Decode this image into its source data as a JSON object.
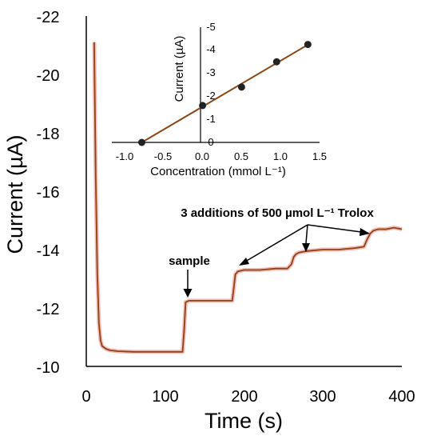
{
  "chart_data": [
    {
      "type": "line",
      "title": "",
      "xlabel": "Time (s)",
      "ylabel": "Current (µA)",
      "xlim": [
        0,
        400
      ],
      "ylim": [
        -10,
        -22
      ],
      "x_ticks": [
        "0",
        "100",
        "200",
        "300",
        "400"
      ],
      "y_ticks": [
        "-10",
        "-12",
        "-14",
        "-16",
        "-18",
        "-20",
        "-22"
      ],
      "grid": false,
      "series": [
        {
          "color": "#8B4513",
          "noise_color": "#e53935",
          "x": [
            10,
            12,
            14,
            16,
            18,
            20,
            25,
            30,
            40,
            60,
            80,
            100,
            110,
            122,
            124,
            126,
            130,
            150,
            170,
            185,
            187,
            189,
            192,
            200,
            220,
            240,
            255,
            260,
            263,
            266,
            270,
            280,
            300,
            320,
            340,
            352,
            356,
            360,
            364,
            370,
            380,
            390,
            400
          ],
          "y": [
            -21.1,
            -16.5,
            -13.2,
            -11.5,
            -10.9,
            -10.7,
            -10.6,
            -10.55,
            -10.52,
            -10.5,
            -10.5,
            -10.5,
            -10.5,
            -10.5,
            -11.2,
            -12.2,
            -12.25,
            -12.25,
            -12.25,
            -12.25,
            -12.7,
            -13.15,
            -13.25,
            -13.3,
            -13.3,
            -13.35,
            -13.35,
            -13.5,
            -13.75,
            -13.85,
            -13.9,
            -13.95,
            -14.0,
            -14.0,
            -14.05,
            -14.1,
            -14.35,
            -14.55,
            -14.65,
            -14.7,
            -14.7,
            -14.75,
            -14.7
          ]
        }
      ],
      "annotations": [
        {
          "text": "sample",
          "x": 128,
          "y": -12.3
        },
        {
          "text": "3 additions of 500 µmol L⁻¹ Trolox",
          "targets": [
            {
              "x": 190,
              "y": -13.2
            },
            {
              "x": 275,
              "y": -13.8
            },
            {
              "x": 360,
              "y": -14.55
            }
          ]
        }
      ]
    },
    {
      "type": "scatter",
      "title": "",
      "xlabel": "Concentration (mmol L⁻¹)",
      "ylabel": "Current (µA)",
      "xlim": [
        -1.0,
        1.5
      ],
      "ylim": [
        0,
        -5
      ],
      "x_ticks": [
        "-1.0",
        "-0.5",
        "0.0",
        "0.5",
        "1.0",
        "1.5"
      ],
      "y_ticks": [
        "0",
        "-1",
        "-2",
        "-3",
        "-4",
        "-5"
      ],
      "grid": false,
      "series": [
        {
          "x": [
            -0.78,
            0.0,
            0.5,
            0.95,
            1.35
          ],
          "y": [
            0.0,
            -1.6,
            -2.4,
            -3.5,
            -4.25
          ],
          "marker_color": "#222222"
        }
      ],
      "fit_line": {
        "x": [
          -0.78,
          1.38
        ],
        "y": [
          0.0,
          -4.3
        ],
        "color": "#8B4513"
      }
    }
  ]
}
